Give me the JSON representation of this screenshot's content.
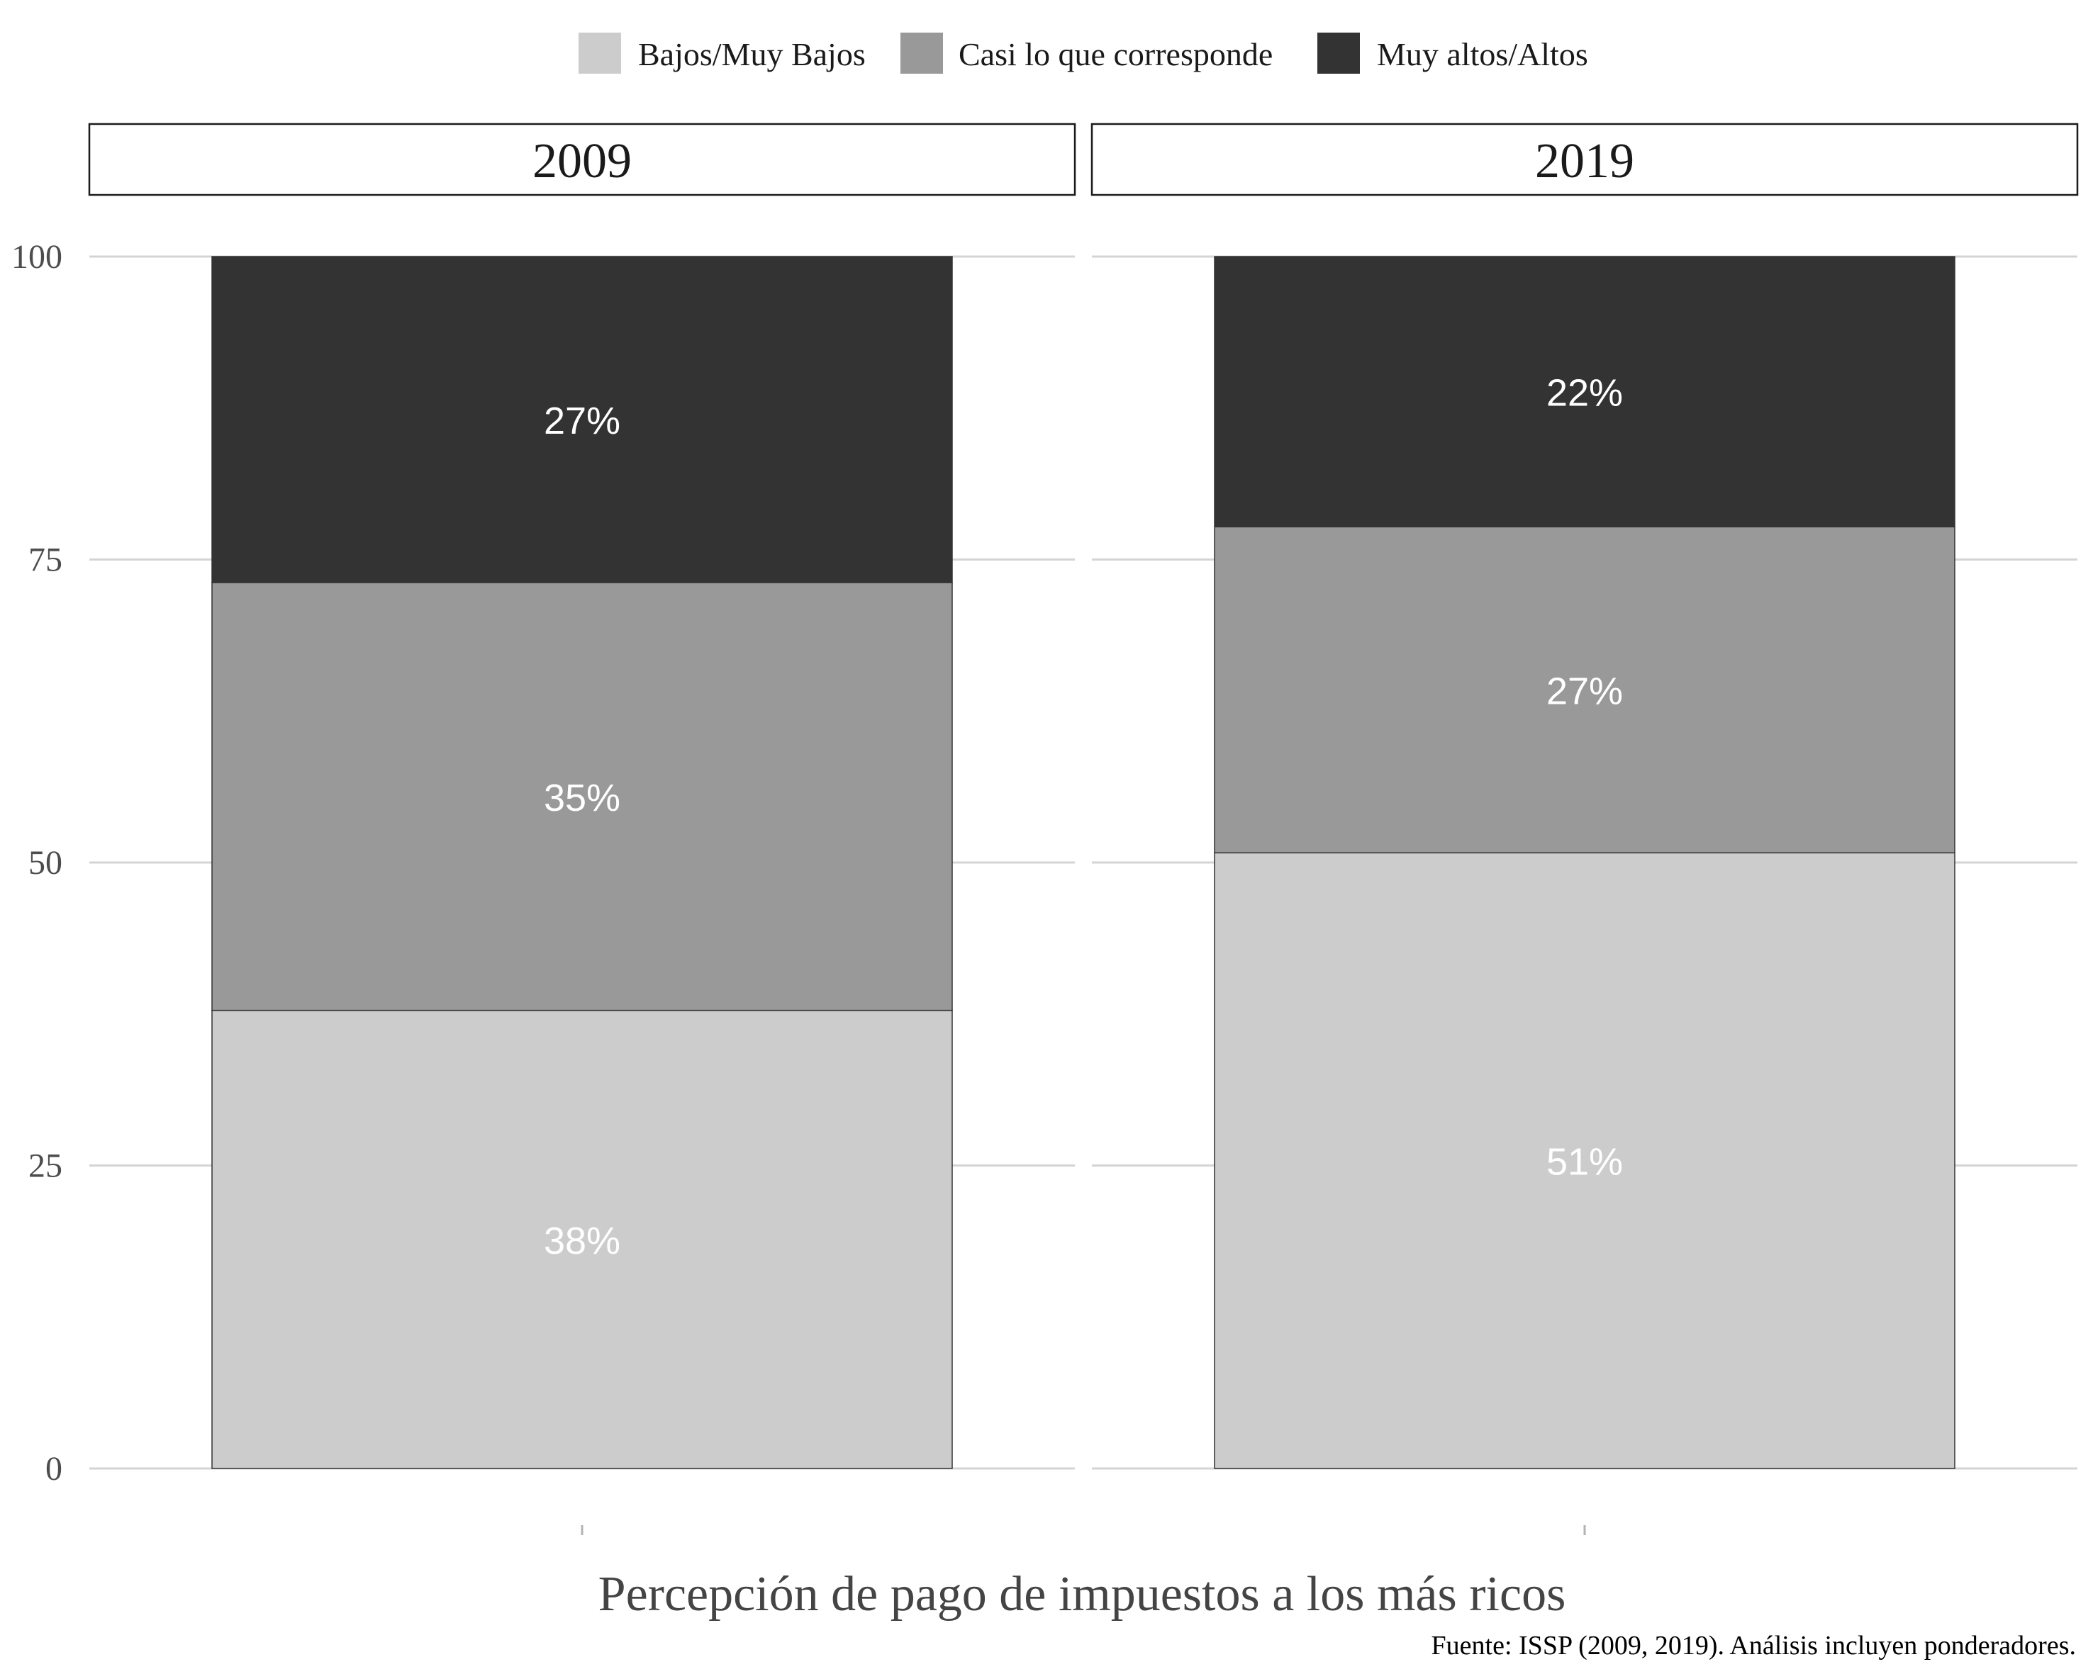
{
  "chart_data": {
    "type": "bar",
    "stacked": true,
    "xlabel": "Percepción de pago de impuestos a los más ricos",
    "ylabel": "",
    "ylim": [
      0,
      100
    ],
    "yticks": [
      0,
      25,
      50,
      75,
      100
    ],
    "grid": true,
    "legend": "top",
    "caption": "Fuente: ISSP (2009, 2019). Análisis incluyen ponderadores.",
    "series": [
      {
        "name": "Bajos/Muy Bajos",
        "color": "#cccccc"
      },
      {
        "name": "Casi lo que corresponde",
        "color": "#999999"
      },
      {
        "name": "Muy altos/Altos",
        "color": "#333333"
      }
    ],
    "facets": [
      {
        "label": "2009",
        "values": [
          37.8,
          35.3,
          26.9
        ],
        "labels": [
          "38%",
          "35%",
          "27%"
        ]
      },
      {
        "label": "2019",
        "values": [
          50.8,
          26.9,
          22.3
        ],
        "labels": [
          "51%",
          "27%",
          "22%"
        ]
      }
    ]
  }
}
